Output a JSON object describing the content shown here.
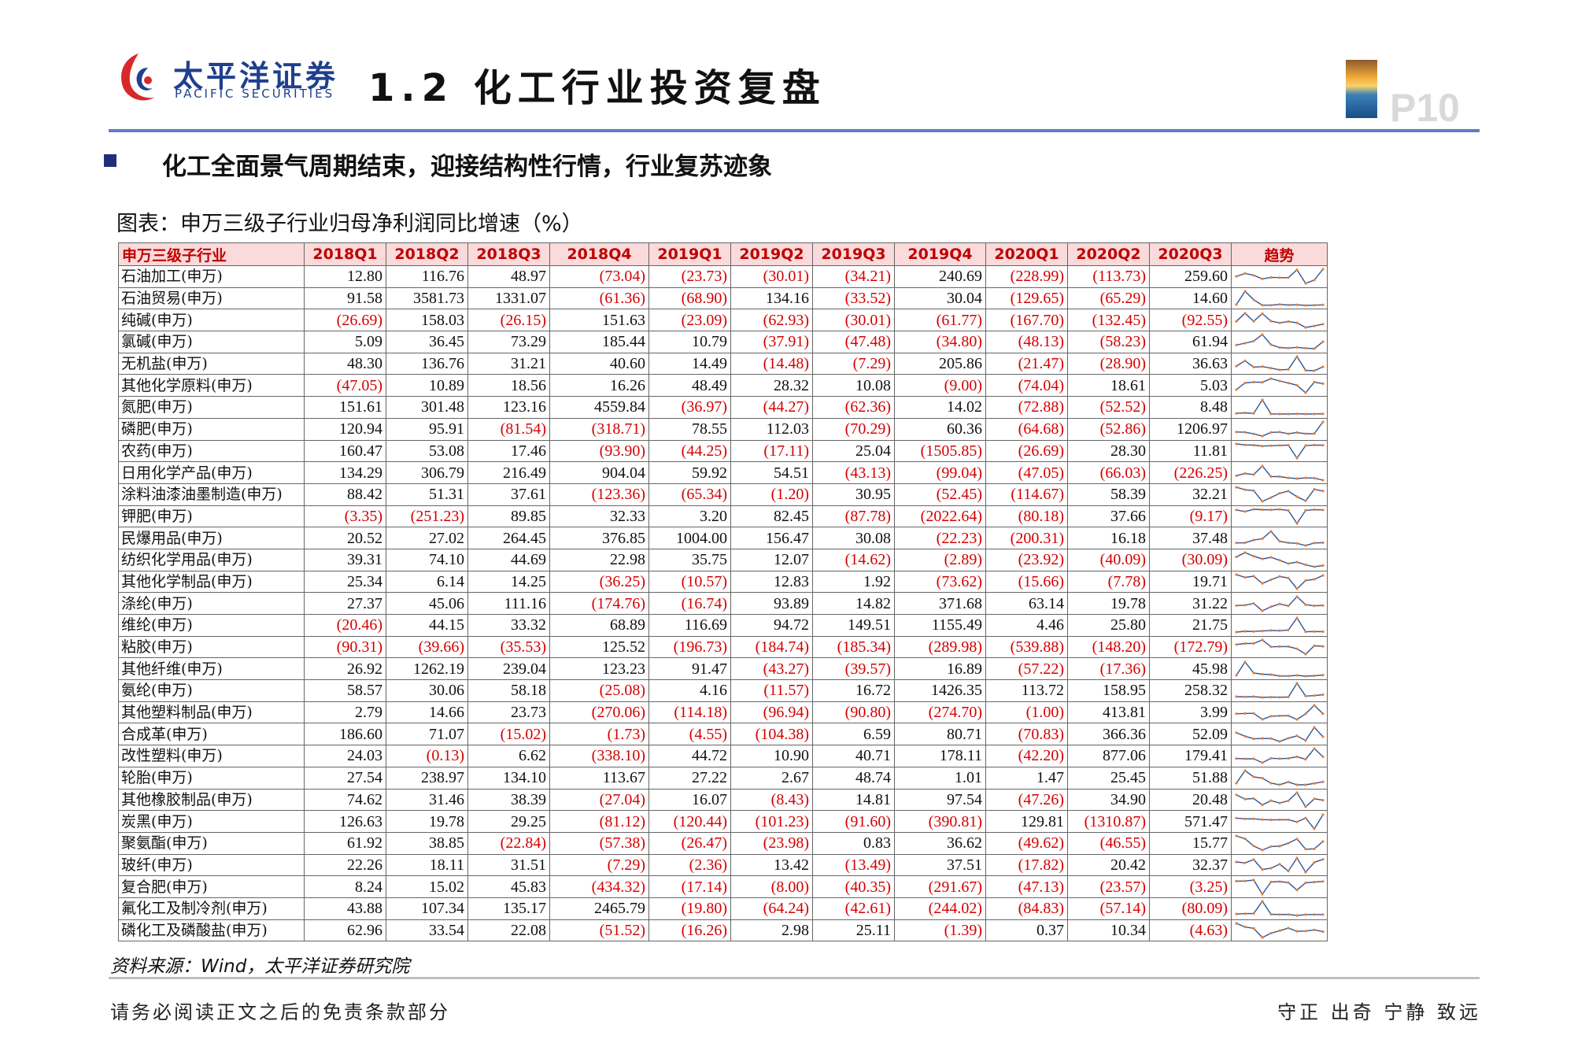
{
  "header": {
    "logo_cn": "太平洋证券",
    "logo_en": "PACIFIC SECURITIES",
    "title": "1.2 化工行业投资复盘",
    "page_number": "P10"
  },
  "headline": "化工全面景气周期结束，迎接结构性行情，行业复苏迹象",
  "figure_caption": "图表：申万三级子行业归母净利润同比增速（%）",
  "table": {
    "columns": [
      "申万三级子行业",
      "2018Q1",
      "2018Q2",
      "2018Q3",
      "2018Q4",
      "2019Q1",
      "2019Q2",
      "2019Q3",
      "2019Q4",
      "2020Q1",
      "2020Q2",
      "2020Q3",
      "趋势"
    ],
    "rows": [
      {
        "name": "石油加工(申万)",
        "values": [
          "12.80",
          "116.76",
          "48.97",
          "(73.04)",
          "(23.73)",
          "(30.01)",
          "(34.21)",
          "240.69",
          "(228.99)",
          "(113.73)",
          "259.60"
        ]
      },
      {
        "name": "石油贸易(申万)",
        "values": [
          "91.58",
          "3581.73",
          "1331.07",
          "(61.36)",
          "(68.90)",
          "134.16",
          "(33.52)",
          "30.04",
          "(129.65)",
          "(65.29)",
          "14.60"
        ]
      },
      {
        "name": "纯碱(申万)",
        "values": [
          "(26.69)",
          "158.03",
          "(26.15)",
          "151.63",
          "(23.09)",
          "(62.93)",
          "(30.01)",
          "(61.77)",
          "(167.70)",
          "(132.45)",
          "(92.55)"
        ]
      },
      {
        "name": "氯碱(申万)",
        "values": [
          "5.09",
          "36.45",
          "73.29",
          "185.44",
          "10.79",
          "(37.91)",
          "(47.48)",
          "(34.80)",
          "(48.13)",
          "(58.23)",
          "61.94"
        ]
      },
      {
        "name": "无机盐(申万)",
        "values": [
          "48.30",
          "136.76",
          "31.21",
          "40.60",
          "14.49",
          "(14.48)",
          "(7.29)",
          "205.86",
          "(21.47)",
          "(28.90)",
          "36.63"
        ]
      },
      {
        "name": "其他化学原料(申万)",
        "values": [
          "(47.05)",
          "10.89",
          "18.56",
          "16.26",
          "48.49",
          "28.32",
          "10.08",
          "(9.00)",
          "(74.04)",
          "18.61",
          "5.03"
        ]
      },
      {
        "name": "氮肥(申万)",
        "values": [
          "151.61",
          "301.48",
          "123.16",
          "4559.84",
          "(36.97)",
          "(44.27)",
          "(62.36)",
          "14.02",
          "(72.88)",
          "(52.52)",
          "8.48"
        ]
      },
      {
        "name": "磷肥(申万)",
        "values": [
          "120.94",
          "95.91",
          "(81.54)",
          "(318.71)",
          "78.55",
          "112.03",
          "(70.29)",
          "60.36",
          "(64.68)",
          "(52.86)",
          "1206.97"
        ]
      },
      {
        "name": "农药(申万)",
        "values": [
          "160.47",
          "53.08",
          "17.46",
          "(93.90)",
          "(44.25)",
          "(17.11)",
          "25.04",
          "(1505.85)",
          "(26.69)",
          "28.30",
          "11.81"
        ]
      },
      {
        "name": "日用化学产品(申万)",
        "values": [
          "134.29",
          "306.79",
          "216.49",
          "904.04",
          "59.92",
          "54.51",
          "(43.13)",
          "(99.04)",
          "(47.05)",
          "(66.03)",
          "(226.25)"
        ]
      },
      {
        "name": "涂料油漆油墨制造(申万)",
        "values": [
          "88.42",
          "51.31",
          "37.61",
          "(123.36)",
          "(65.34)",
          "(1.20)",
          "30.95",
          "(52.45)",
          "(114.67)",
          "58.39",
          "32.21"
        ]
      },
      {
        "name": "钾肥(申万)",
        "values": [
          "(3.35)",
          "(251.23)",
          "89.85",
          "32.33",
          "3.20",
          "82.45",
          "(87.78)",
          "(2022.64)",
          "(80.18)",
          "37.66",
          "(9.17)"
        ]
      },
      {
        "name": "民爆用品(申万)",
        "values": [
          "20.52",
          "27.02",
          "264.45",
          "376.85",
          "1004.00",
          "156.47",
          "30.08",
          "(22.23)",
          "(200.31)",
          "16.18",
          "37.48"
        ]
      },
      {
        "name": "纺织化学用品(申万)",
        "values": [
          "39.31",
          "74.10",
          "44.69",
          "22.98",
          "35.75",
          "12.07",
          "(14.62)",
          "(2.89)",
          "(23.92)",
          "(40.09)",
          "(30.09)"
        ]
      },
      {
        "name": "其他化学制品(申万)",
        "values": [
          "25.34",
          "6.14",
          "14.25",
          "(36.25)",
          "(10.57)",
          "12.83",
          "1.92",
          "(73.62)",
          "(15.66)",
          "(7.78)",
          "19.71"
        ]
      },
      {
        "name": "涤纶(申万)",
        "values": [
          "27.37",
          "45.06",
          "111.16",
          "(174.76)",
          "(16.74)",
          "93.89",
          "14.82",
          "371.68",
          "63.14",
          "19.78",
          "31.22"
        ]
      },
      {
        "name": "维纶(申万)",
        "values": [
          "(20.46)",
          "44.15",
          "33.32",
          "68.89",
          "116.69",
          "94.72",
          "149.51",
          "1155.49",
          "4.46",
          "25.80",
          "21.75"
        ]
      },
      {
        "name": "粘胶(申万)",
        "values": [
          "(90.31)",
          "(39.66)",
          "(35.53)",
          "125.52",
          "(196.73)",
          "(184.74)",
          "(185.34)",
          "(289.98)",
          "(539.88)",
          "(148.20)",
          "(172.79)"
        ]
      },
      {
        "name": "其他纤维(申万)",
        "values": [
          "26.92",
          "1262.19",
          "239.04",
          "123.23",
          "91.47",
          "(43.27)",
          "(39.57)",
          "16.89",
          "(57.22)",
          "(17.36)",
          "45.98"
        ]
      },
      {
        "name": "氨纶(申万)",
        "values": [
          "58.57",
          "30.06",
          "58.18",
          "(25.08)",
          "4.16",
          "(11.57)",
          "16.72",
          "1426.35",
          "113.72",
          "158.95",
          "258.32"
        ]
      },
      {
        "name": "其他塑料制品(申万)",
        "values": [
          "2.79",
          "14.66",
          "23.73",
          "(270.06)",
          "(114.18)",
          "(96.94)",
          "(90.80)",
          "(274.70)",
          "(1.00)",
          "413.81",
          "3.99"
        ]
      },
      {
        "name": "合成革(申万)",
        "values": [
          "186.60",
          "71.07",
          "(15.02)",
          "(1.73)",
          "(4.55)",
          "(104.38)",
          "6.59",
          "80.71",
          "(70.83)",
          "366.36",
          "52.09"
        ]
      },
      {
        "name": "改性塑料(申万)",
        "values": [
          "24.03",
          "(0.13)",
          "6.62",
          "(338.10)",
          "44.72",
          "10.90",
          "40.71",
          "178.11",
          "(42.20)",
          "877.06",
          "179.41"
        ]
      },
      {
        "name": "轮胎(申万)",
        "values": [
          "27.54",
          "238.97",
          "134.10",
          "113.67",
          "27.22",
          "2.67",
          "48.74",
          "1.01",
          "1.47",
          "25.45",
          "51.88"
        ]
      },
      {
        "name": "其他橡胶制品(申万)",
        "values": [
          "74.62",
          "31.46",
          "38.39",
          "(27.04)",
          "16.07",
          "(8.43)",
          "14.81",
          "97.54",
          "(47.26)",
          "34.90",
          "20.48"
        ]
      },
      {
        "name": "炭黑(申万)",
        "values": [
          "126.63",
          "19.78",
          "29.25",
          "(81.12)",
          "(120.44)",
          "(101.23)",
          "(91.60)",
          "(390.81)",
          "129.81",
          "(1310.87)",
          "571.47"
        ]
      },
      {
        "name": "聚氨酯(申万)",
        "values": [
          "61.92",
          "38.85",
          "(22.84)",
          "(57.38)",
          "(26.47)",
          "(23.98)",
          "0.83",
          "36.62",
          "(49.62)",
          "(46.55)",
          "15.77"
        ]
      },
      {
        "name": "玻纤(申万)",
        "values": [
          "22.26",
          "18.11",
          "31.51",
          "(7.29)",
          "(2.36)",
          "13.42",
          "(13.49)",
          "37.51",
          "(17.82)",
          "20.42",
          "32.37"
        ]
      },
      {
        "name": "复合肥(申万)",
        "values": [
          "8.24",
          "15.02",
          "45.83",
          "(434.32)",
          "(17.14)",
          "(8.00)",
          "(40.35)",
          "(291.67)",
          "(47.13)",
          "(23.57)",
          "(3.25)"
        ]
      },
      {
        "name": "氟化工及制冷剂(申万)",
        "values": [
          "43.88",
          "107.34",
          "135.17",
          "2465.79",
          "(19.80)",
          "(64.24)",
          "(42.61)",
          "(244.02)",
          "(84.83)",
          "(57.14)",
          "(80.09)"
        ]
      },
      {
        "name": "磷化工及磷酸盐(申万)",
        "values": [
          "62.96",
          "33.54",
          "22.08",
          "(51.52)",
          "(16.26)",
          "2.98",
          "25.11",
          "(1.39)",
          "0.37",
          "10.34",
          "(4.63)"
        ]
      }
    ]
  },
  "colors": {
    "negative": "#d40000",
    "header_bg": "#fadada",
    "header_text": "#c00000",
    "sparkline_line": "#2f5597",
    "sparkline_point": "#ed7d31"
  },
  "source": "资料来源：Wind，太平洋证券研究院",
  "footer": {
    "disclaimer": "请务必阅读正文之后的免责条款部分",
    "motto": "守正 出奇 宁静 致远"
  }
}
